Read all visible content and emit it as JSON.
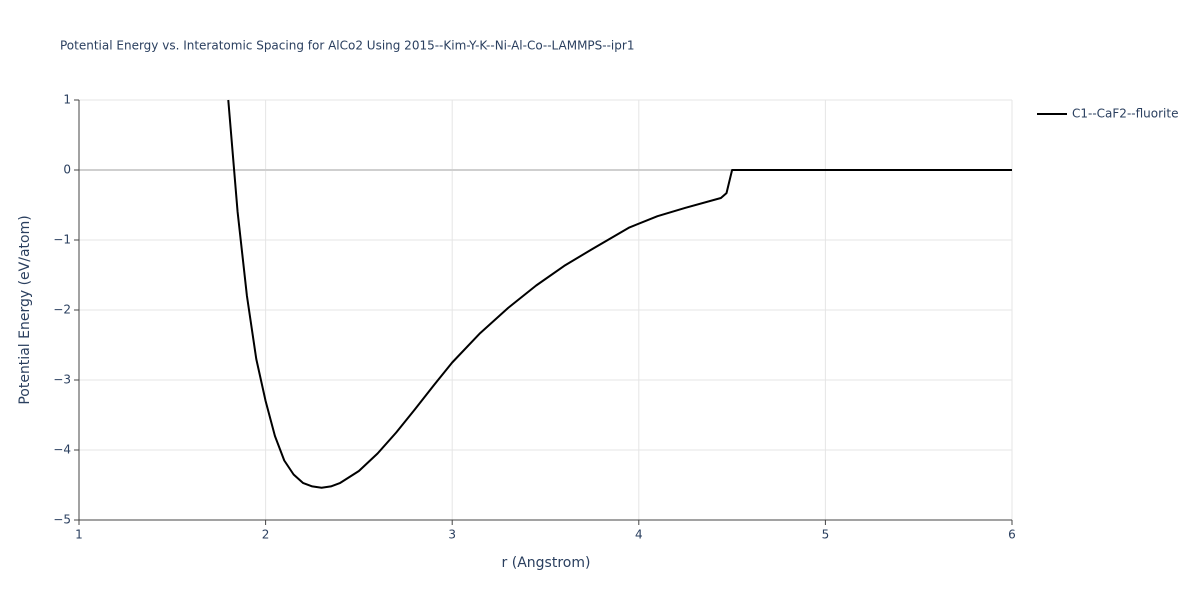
{
  "chart_data": {
    "type": "line",
    "title": "Potential Energy vs. Interatomic Spacing for AlCo2 Using 2015--Kim-Y-K--Ni-Al-Co--LAMMPS--ipr1",
    "x_label": "r (Angstrom)",
    "y_label": "Potential Energy (eV/atom)",
    "x": [
      1.8,
      1.85,
      1.9,
      1.95,
      2.0,
      2.05,
      2.1,
      2.15,
      2.2,
      2.25,
      2.3,
      2.35,
      2.4,
      2.5,
      2.6,
      2.7,
      2.8,
      2.9,
      3.0,
      3.15,
      3.3,
      3.45,
      3.6,
      3.75,
      3.95,
      4.1,
      4.25,
      4.44,
      4.47,
      4.5,
      4.6,
      6.0
    ],
    "series": [
      {
        "name": "C1--CaF2--fluorite",
        "color": "#000000",
        "values": [
          1.0,
          -0.6,
          -1.8,
          -2.7,
          -3.3,
          -3.8,
          -4.15,
          -4.35,
          -4.47,
          -4.52,
          -4.54,
          -4.52,
          -4.47,
          -4.3,
          -4.05,
          -3.75,
          -3.42,
          -3.08,
          -2.75,
          -2.33,
          -1.97,
          -1.65,
          -1.37,
          -1.13,
          -0.82,
          -0.66,
          -0.54,
          -0.4,
          -0.33,
          0.0,
          0.0,
          0.0
        ]
      }
    ],
    "xlim": [
      1,
      6
    ],
    "xticks": [
      1,
      2,
      3,
      4,
      5,
      6
    ],
    "ylim": [
      -5,
      1
    ],
    "yticks": [
      {
        "value": -5,
        "label": "−5"
      },
      {
        "value": -4,
        "label": "−4"
      },
      {
        "value": -3,
        "label": "−3"
      },
      {
        "value": -2,
        "label": "−2"
      },
      {
        "value": -1,
        "label": "−1"
      },
      0,
      1
    ],
    "grid": true
  }
}
